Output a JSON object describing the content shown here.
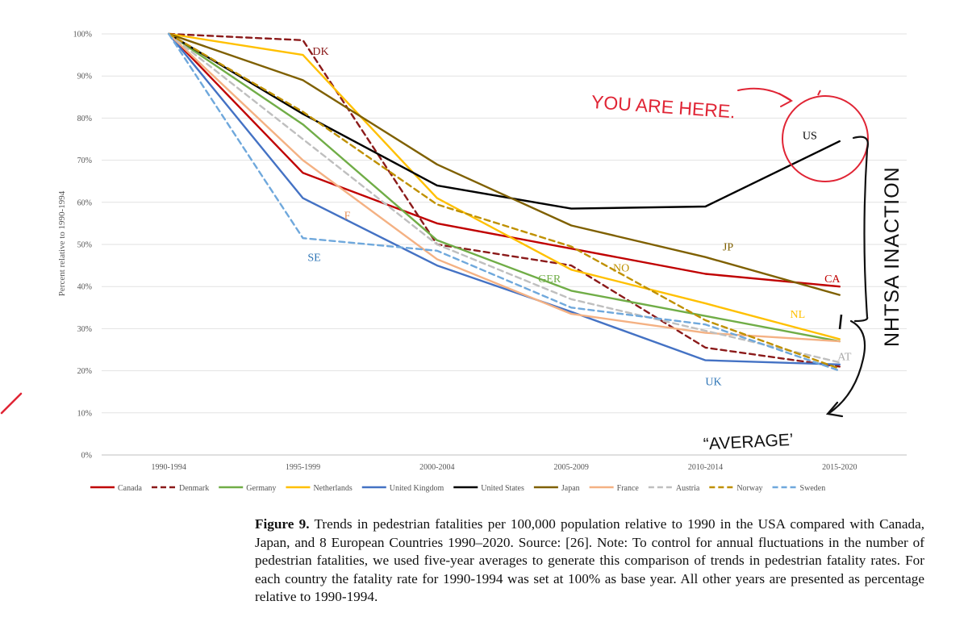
{
  "chart_data": {
    "type": "line",
    "title": "",
    "xlabel": "",
    "ylabel": "Percent relative to 1990-1994",
    "ylim": [
      0,
      100
    ],
    "yticks": [
      "0%",
      "10%",
      "20%",
      "30%",
      "40%",
      "50%",
      "60%",
      "70%",
      "80%",
      "90%",
      "100%"
    ],
    "grid": true,
    "legend_position": "bottom",
    "categories": [
      "1990-1994",
      "1995-1999",
      "2000-2004",
      "2005-2009",
      "2010-2014",
      "2015-2020"
    ],
    "series": [
      {
        "name": "Canada",
        "color": "#c00000",
        "dash": false,
        "values": [
          100,
          67,
          55,
          49,
          43,
          40
        ]
      },
      {
        "name": "Denmark",
        "color": "#8b1a1a",
        "dash": true,
        "values": [
          100,
          98.5,
          50,
          45,
          25.5,
          21
        ]
      },
      {
        "name": "Germany",
        "color": "#70ad47",
        "dash": false,
        "values": [
          100,
          78.5,
          51,
          39,
          33,
          27
        ]
      },
      {
        "name": "Netherlands",
        "color": "#ffc000",
        "dash": false,
        "values": [
          100,
          95,
          61,
          44,
          36,
          27.5
        ]
      },
      {
        "name": "United Kingdom",
        "color": "#4472c4",
        "dash": false,
        "values": [
          100,
          61,
          45,
          34,
          22.5,
          21.5
        ]
      },
      {
        "name": "United States",
        "color": "#000000",
        "dash": false,
        "values": [
          100,
          81,
          64,
          58.5,
          59,
          74.5
        ]
      },
      {
        "name": "Japan",
        "color": "#7f6000",
        "dash": false,
        "values": [
          100,
          89,
          69,
          54.5,
          47,
          38
        ]
      },
      {
        "name": "France",
        "color": "#f4b183",
        "dash": false,
        "values": [
          100,
          70,
          46.5,
          33.5,
          29,
          27
        ]
      },
      {
        "name": "Austria",
        "color": "#bfbfbf",
        "dash": true,
        "values": [
          100,
          75,
          50,
          37,
          29.5,
          22
        ]
      },
      {
        "name": "Norway",
        "color": "#bf9000",
        "dash": true,
        "values": [
          100,
          81.5,
          59.5,
          49.5,
          32,
          20.5
        ]
      },
      {
        "name": "Sweden",
        "color": "#6fa8dc",
        "dash": true,
        "values": [
          100,
          51.5,
          48.5,
          35,
          31,
          20
        ]
      }
    ],
    "annotations": [
      {
        "text": "DK",
        "color": "#8b1a1a",
        "x": "1995-1999",
        "y": 96
      },
      {
        "text": "F",
        "color": "#e8915a",
        "x": "1995-1999",
        "y": 57
      },
      {
        "text": "SE",
        "color": "#2e75b6",
        "x": "1995-1999",
        "y": 47
      },
      {
        "text": "GER",
        "color": "#70ad47",
        "x": "2005-2009",
        "y": 42
      },
      {
        "text": "NO",
        "color": "#bf9000",
        "x": "2005-2009",
        "y": 44.5
      },
      {
        "text": "JP",
        "color": "#7f6000",
        "x": "2010-2014",
        "y": 49.5
      },
      {
        "text": "CA",
        "color": "#c00000",
        "x": "2015-2020",
        "y": 42
      },
      {
        "text": "NL",
        "color": "#ffc000",
        "x": "2015-2020",
        "y": 33.5
      },
      {
        "text": "AT",
        "color": "#aaaaaa",
        "x": "2015-2020",
        "y": 23.5
      },
      {
        "text": "UK",
        "color": "#2e75b6",
        "x": "2010-2014",
        "y": 17.5
      },
      {
        "text": "US",
        "color": "#000000",
        "x": "2015-2020",
        "y": 76
      }
    ]
  },
  "handwriting": {
    "you_are_here": "YOU ARE HERE.",
    "nhtsa": "NHTSA INACTION",
    "average": "“AVERAGE’",
    "color_red": "#e02535",
    "color_black": "#111111"
  },
  "caption": {
    "figure_label": "Figure 9.",
    "text": " Trends in pedestrian fatalities per 100,000 population relative to 1990 in the USA compared with Canada, Japan, and 8 European Countries 1990–2020. Source: [26]. Note: To control for annual fluctuations in the number of pedestrian fatalities, we used five-year averages to generate this comparison of trends in pedestrian fatality rates. For each country the fatality rate for 1990-1994 was set at 100% as base year. All other years are presented as percentage relative to 1990-1994."
  }
}
